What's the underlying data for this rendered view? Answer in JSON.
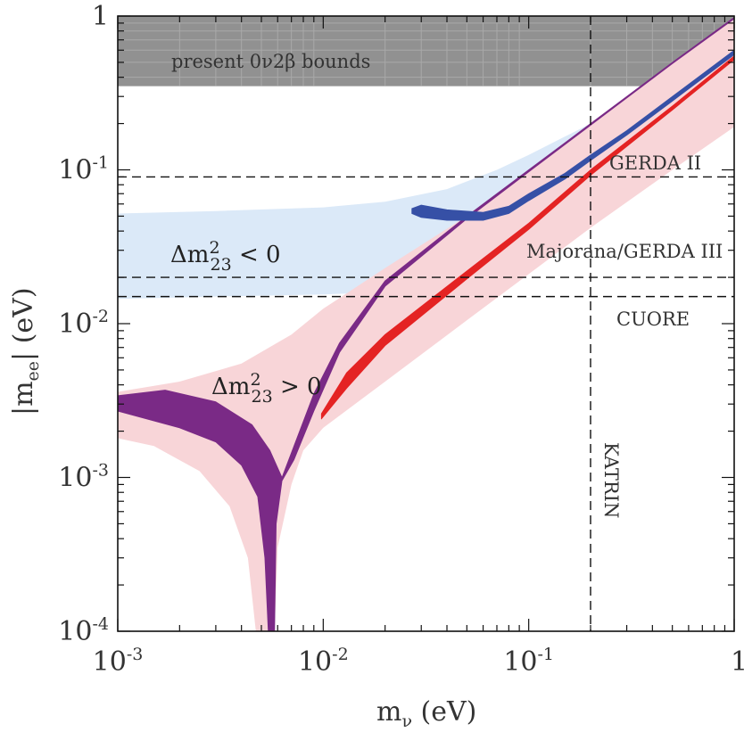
{
  "chart_data": {
    "type": "area",
    "x_axis": {
      "label": "m",
      "label_sub": "ν",
      "label_unit": " (eV)",
      "scale": "log",
      "range": [
        0.001,
        1
      ],
      "ticks": [
        {
          "value": 0.001,
          "base": "10",
          "exp": "-3"
        },
        {
          "value": 0.01,
          "base": "10",
          "exp": "-2"
        },
        {
          "value": 0.1,
          "base": "10",
          "exp": "-1"
        },
        {
          "value": 1,
          "base": "1",
          "exp": ""
        }
      ]
    },
    "y_axis": {
      "label_prefix": "|m",
      "label_sub": "ee",
      "label_suffix": "| (eV)",
      "scale": "log",
      "range": [
        0.0001,
        1
      ],
      "ticks": [
        {
          "value": 0.0001,
          "base": "10",
          "exp": "-4"
        },
        {
          "value": 0.001,
          "base": "10",
          "exp": "-3"
        },
        {
          "value": 0.01,
          "base": "10",
          "exp": "-2"
        },
        {
          "value": 0.1,
          "base": "10",
          "exp": "-1"
        },
        {
          "value": 1,
          "base": "1",
          "exp": ""
        }
      ]
    },
    "excluded_region": {
      "label": "present 0ν2β bounds",
      "y_min": 0.35,
      "y_max": 1,
      "color": "#919191"
    },
    "sensitivity_lines": [
      {
        "name": "GERDA II",
        "orientation": "horizontal",
        "value": 0.09
      },
      {
        "name": "Majorana/GERDA III",
        "orientation": "horizontal",
        "value": 0.02
      },
      {
        "name": "CUORE",
        "orientation": "horizontal",
        "value": 0.015
      },
      {
        "name": "KATRIN",
        "orientation": "vertical",
        "value": 0.2
      }
    ],
    "bands": [
      {
        "name": "Δm²23 < 0 (inverted hierarchy)",
        "label_prefix": "Δm",
        "label_sup": "2",
        "label_sub": "23",
        "label_rel": " < 0",
        "color": "#dbe9f8",
        "upper": [
          [
            0.001,
            0.052
          ],
          [
            0.003,
            0.054
          ],
          [
            0.01,
            0.057
          ],
          [
            0.02,
            0.062
          ],
          [
            0.04,
            0.075
          ],
          [
            0.07,
            0.1
          ],
          [
            0.1,
            0.125
          ],
          [
            0.2,
            0.2
          ],
          [
            0.3,
            0.27
          ],
          [
            0.5,
            0.4
          ],
          [
            1,
            0.7
          ]
        ],
        "lower": [
          [
            1,
            0.19
          ],
          [
            0.5,
            0.105
          ],
          [
            0.3,
            0.07
          ],
          [
            0.2,
            0.052
          ],
          [
            0.1,
            0.029
          ],
          [
            0.05,
            0.02
          ],
          [
            0.03,
            0.017
          ],
          [
            0.02,
            0.016
          ],
          [
            0.01,
            0.0155
          ],
          [
            0.003,
            0.015
          ],
          [
            0.001,
            0.0145
          ]
        ]
      },
      {
        "name": "Δm²23 > 0 (normal hierarchy)",
        "label_prefix": "Δm",
        "label_sup": "2",
        "label_sub": "23",
        "label_rel": " > 0",
        "color": "#f8d5d8",
        "upper": [
          [
            0.001,
            0.0036
          ],
          [
            0.002,
            0.0042
          ],
          [
            0.004,
            0.0055
          ],
          [
            0.007,
            0.0085
          ],
          [
            0.01,
            0.0125
          ],
          [
            0.02,
            0.023
          ],
          [
            0.05,
            0.05
          ],
          [
            0.1,
            0.1
          ],
          [
            0.2,
            0.2
          ],
          [
            0.5,
            0.5
          ],
          [
            1,
            0.98
          ]
        ],
        "lower": [
          [
            1,
            0.19
          ],
          [
            0.5,
            0.1
          ],
          [
            0.2,
            0.042
          ],
          [
            0.1,
            0.021
          ],
          [
            0.05,
            0.0105
          ],
          [
            0.02,
            0.0042
          ],
          [
            0.01,
            0.0021
          ],
          [
            0.008,
            0.0015
          ],
          [
            0.007,
            0.0009
          ],
          [
            0.006,
            0.00035
          ],
          [
            0.0058,
            0.0001
          ],
          [
            0.0047,
            0.0001
          ],
          [
            0.0043,
            0.0003
          ],
          [
            0.0035,
            0.00065
          ],
          [
            0.0025,
            0.0011
          ],
          [
            0.0015,
            0.0016
          ],
          [
            0.001,
            0.0018
          ]
        ]
      }
    ],
    "curves": [
      {
        "name": "normal hierarchy best-fit (purple)",
        "color": "#7a2a86",
        "upper": [
          [
            0.001,
            0.0034
          ],
          [
            0.0017,
            0.0037
          ],
          [
            0.003,
            0.0031
          ],
          [
            0.0045,
            0.0022
          ],
          [
            0.0055,
            0.0015
          ],
          [
            0.0063,
            0.001
          ],
          [
            0.0072,
            0.0016
          ],
          [
            0.009,
            0.0035
          ],
          [
            0.012,
            0.0075
          ],
          [
            0.02,
            0.019
          ],
          [
            0.05,
            0.05
          ],
          [
            0.1,
            0.1
          ],
          [
            0.2,
            0.2
          ],
          [
            0.5,
            0.5
          ],
          [
            1,
            0.98
          ]
        ],
        "lower": [
          [
            1,
            0.96
          ],
          [
            0.5,
            0.49
          ],
          [
            0.2,
            0.195
          ],
          [
            0.1,
            0.097
          ],
          [
            0.05,
            0.048
          ],
          [
            0.02,
            0.0175
          ],
          [
            0.012,
            0.0065
          ],
          [
            0.009,
            0.0027
          ],
          [
            0.0072,
            0.0013
          ],
          [
            0.0063,
            0.00095
          ],
          [
            0.0059,
            0.0005
          ],
          [
            0.0058,
            0.0001
          ],
          [
            0.0054,
            0.0001
          ],
          [
            0.0052,
            0.0003
          ],
          [
            0.0048,
            0.00075
          ],
          [
            0.004,
            0.0012
          ],
          [
            0.003,
            0.0017
          ],
          [
            0.002,
            0.0021
          ],
          [
            0.001,
            0.0027
          ]
        ]
      },
      {
        "name": "normal hierarchy (red)",
        "color": "#e42323",
        "upper": [
          [
            0.0098,
            0.0026
          ],
          [
            0.013,
            0.0048
          ],
          [
            0.02,
            0.0085
          ],
          [
            0.05,
            0.022
          ],
          [
            0.1,
            0.045
          ],
          [
            0.2,
            0.1
          ],
          [
            0.5,
            0.26
          ],
          [
            1,
            0.55
          ]
        ],
        "lower": [
          [
            1,
            0.52
          ],
          [
            0.5,
            0.245
          ],
          [
            0.2,
            0.092
          ],
          [
            0.1,
            0.041
          ],
          [
            0.05,
            0.0195
          ],
          [
            0.02,
            0.0072
          ],
          [
            0.013,
            0.0038
          ],
          [
            0.0098,
            0.0024
          ]
        ]
      },
      {
        "name": "inverted hierarchy (blue)",
        "color": "#3650a6",
        "upper": [
          [
            0.027,
            0.056
          ],
          [
            0.03,
            0.059
          ],
          [
            0.04,
            0.055
          ],
          [
            0.06,
            0.053
          ],
          [
            0.08,
            0.058
          ],
          [
            0.1,
            0.07
          ],
          [
            0.15,
            0.095
          ],
          [
            0.2,
            0.125
          ],
          [
            0.3,
            0.18
          ],
          [
            0.5,
            0.3
          ],
          [
            1,
            0.6
          ]
        ],
        "lower": [
          [
            1,
            0.56
          ],
          [
            0.5,
            0.28
          ],
          [
            0.3,
            0.168
          ],
          [
            0.2,
            0.115
          ],
          [
            0.15,
            0.087
          ],
          [
            0.1,
            0.063
          ],
          [
            0.08,
            0.052
          ],
          [
            0.06,
            0.047
          ],
          [
            0.04,
            0.047
          ],
          [
            0.03,
            0.049
          ],
          [
            0.027,
            0.052
          ]
        ]
      }
    ]
  }
}
